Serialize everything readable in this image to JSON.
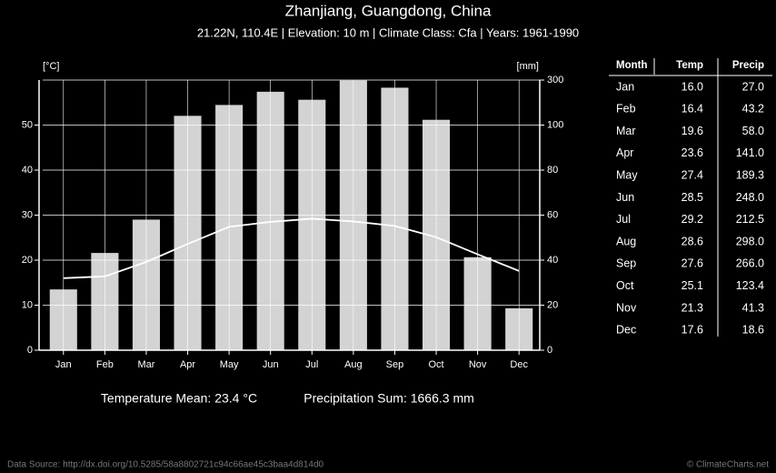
{
  "chart_data": {
    "type": "climate",
    "title": "Zhanjiang, Guangdong, China",
    "subtitle": "21.22N, 110.4E | Elevation: 10 m | Climate Class: Cfa | Years: 1961-1990",
    "ylabel": "[°C]",
    "y2label": "[mm]",
    "categories": [
      "Jan",
      "Feb",
      "Mar",
      "Apr",
      "May",
      "Jun",
      "Jul",
      "Aug",
      "Sep",
      "Oct",
      "Nov",
      "Dec"
    ],
    "series": [
      {
        "name": "Temp",
        "type": "line",
        "color": "#ffffff",
        "values": [
          16.0,
          16.4,
          19.6,
          23.6,
          27.4,
          28.5,
          29.2,
          28.6,
          27.6,
          25.1,
          21.3,
          17.6
        ],
        "value_labels": [
          "16.0",
          "16.4",
          "19.6",
          "23.6",
          "27.4",
          "28.5",
          "29.2",
          "28.6",
          "27.6",
          "25.1",
          "21.3",
          "17.6"
        ]
      },
      {
        "name": "Precip",
        "type": "bar",
        "axis": "y2",
        "color": "#d3d3d3",
        "values": [
          27.0,
          43.2,
          58.0,
          141.0,
          189.3,
          248.0,
          212.5,
          298.0,
          266.0,
          123.4,
          41.3,
          18.6
        ],
        "value_labels": [
          "27.0",
          "43.2",
          "58.0",
          "141.0",
          "189.3",
          "248.0",
          "212.5",
          "298.0",
          "266.0",
          "123.4",
          "41.3",
          "18.6"
        ]
      }
    ],
    "ylim": [
      0,
      60
    ],
    "yticks": [
      0,
      10,
      20,
      30,
      40,
      50
    ],
    "y2lim": [
      0,
      300
    ],
    "y2ticks": [
      0,
      20,
      40,
      60,
      80,
      100,
      300
    ],
    "grid": true,
    "table_header": "Month",
    "annotations": [
      "Temperature Mean: 23.4 °C",
      "Precipitation Sum: 1666.3 mm"
    ],
    "source": "Data Source: http://dx.doi.org/10.5285/58a8802721c94c66ae45c3baa4d814d0",
    "credit": "© ClimateCharts.net"
  }
}
